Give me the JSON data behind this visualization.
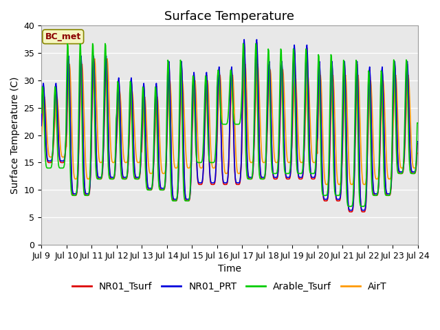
{
  "title": "Surface Temperature",
  "xlabel": "Time",
  "ylabel": "Surface Temperature (C)",
  "ylim": [
    0,
    40
  ],
  "date_labels": [
    "Jul 9",
    "Jul 10",
    "Jul 11",
    "Jul 12",
    "Jul 13",
    "Jul 14",
    "Jul 15",
    "Jul 16",
    "Jul 17",
    "Jul 18",
    "Jul 19",
    "Jul 20",
    "Jul 21",
    "Jul 22",
    "Jul 23",
    "Jul 24"
  ],
  "series_colors": {
    "NR01_Tsurf": "#dd0000",
    "NR01_PRT": "#0000dd",
    "Arable_Tsurf": "#00cc00",
    "AirT": "#ff9900"
  },
  "legend_labels": [
    "NR01_Tsurf",
    "NR01_PRT",
    "Arable_Tsurf",
    "AirT"
  ],
  "annotation": "BC_met",
  "annotation_color": "#8b0000",
  "plot_bg_color": "#e8e8e8",
  "title_fontsize": 13,
  "axis_label_fontsize": 10,
  "tick_fontsize": 9,
  "legend_fontsize": 10,
  "line_width": 1.2,
  "peak_maxes": [
    29,
    34,
    34,
    30,
    29,
    33,
    31,
    32,
    37,
    33,
    36,
    33,
    33,
    32,
    33
  ],
  "peak_mins": [
    15,
    9,
    12,
    12,
    10,
    8,
    11,
    11,
    12,
    12,
    12,
    8,
    6,
    9,
    13
  ],
  "peak_maxes_green": [
    29,
    37,
    37,
    30,
    29,
    34,
    31,
    32,
    37,
    36,
    36,
    35,
    34,
    32,
    34
  ],
  "peak_mins_green": [
    14,
    9,
    12,
    12,
    10,
    8,
    15,
    22,
    12,
    13,
    13,
    9,
    7,
    9,
    13
  ],
  "peak_maxes_air": [
    27,
    33,
    34,
    28,
    27,
    30,
    30,
    31,
    33,
    32,
    31,
    31,
    31,
    30,
    31
  ],
  "peak_mins_air": [
    16,
    12,
    15,
    15,
    13,
    14,
    14,
    13,
    15,
    15,
    15,
    11,
    11,
    12,
    14
  ]
}
